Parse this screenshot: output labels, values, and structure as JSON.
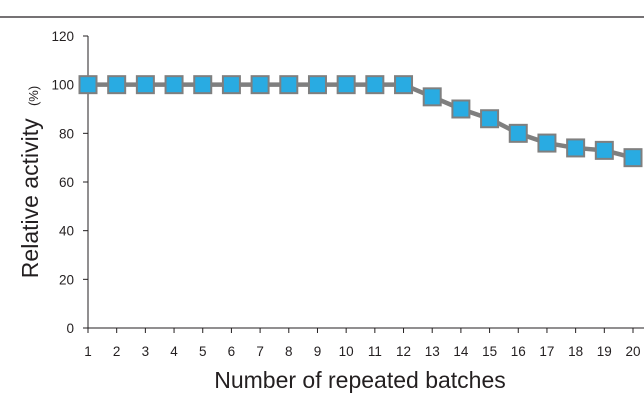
{
  "chart_data": {
    "type": "line",
    "title": "",
    "xlabel": "Number of repeated batches",
    "ylabel": "Relative activity",
    "ylabel_unit": "(%)",
    "x": [
      1,
      2,
      3,
      4,
      5,
      6,
      7,
      8,
      9,
      10,
      11,
      12,
      13,
      14,
      15,
      16,
      17,
      18,
      19,
      20
    ],
    "series": [
      {
        "values": [
          100,
          100,
          100,
          100,
          100,
          100,
          100,
          100,
          100,
          100,
          100,
          100,
          95,
          90,
          86,
          80,
          76,
          74,
          73,
          70
        ]
      }
    ],
    "ylim": [
      0,
      120
    ],
    "y_ticks": [
      0,
      20,
      40,
      60,
      80,
      100,
      120
    ],
    "grid": false,
    "legend": "none",
    "marker": "square",
    "colors": {
      "line": "#7f7f7f",
      "marker_fill": "#29abe2",
      "marker_stroke": "#7f7f7f",
      "axis": "#231f20",
      "text": "#231f20"
    }
  }
}
